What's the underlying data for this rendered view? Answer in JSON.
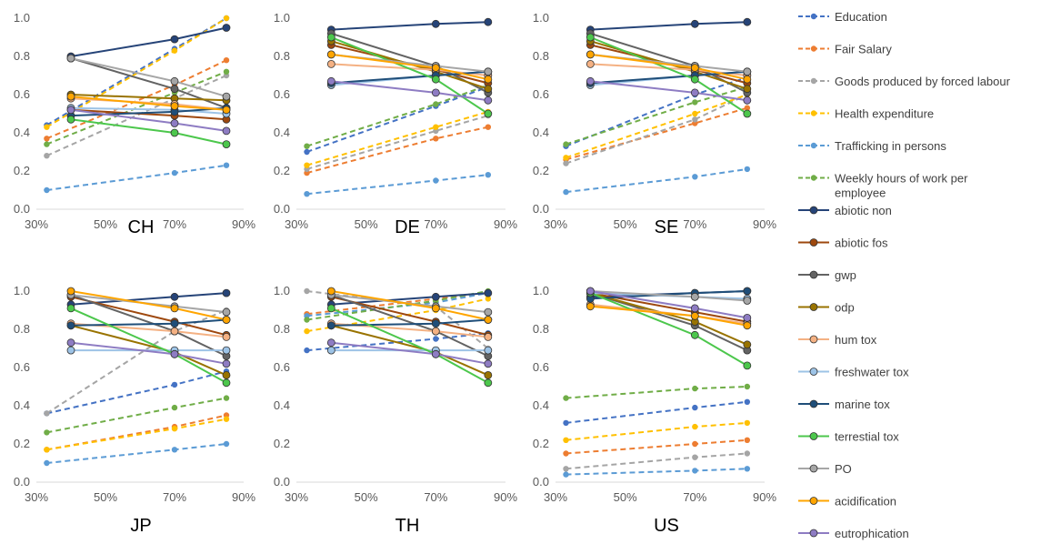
{
  "chart_data": {
    "type": "line",
    "x_tick_labels": [
      "30%",
      "50%",
      "70%",
      "90%"
    ],
    "y_tick_labels": [
      "0.0",
      "0.2",
      "0.4",
      "0.6",
      "0.8",
      "1.0"
    ],
    "xlim": [
      0.3,
      0.9
    ],
    "ylim": [
      0,
      1
    ],
    "grid": false,
    "legend_position": "right",
    "series": [
      {
        "name": "Education",
        "color": "#4472C4",
        "style": "dashed"
      },
      {
        "name": "Fair Salary",
        "color": "#ED7D31",
        "style": "dashed"
      },
      {
        "name": "Goods produced by forced labour",
        "color": "#A5A5A5",
        "style": "dashed"
      },
      {
        "name": "Health expenditure",
        "color": "#FFC000",
        "style": "dashed"
      },
      {
        "name": "Trafficking in persons",
        "color": "#5B9BD5",
        "style": "dashed"
      },
      {
        "name": "Weekly hours of work per employee",
        "color": "#70AD47",
        "style": "dashed"
      },
      {
        "name": "abiotic non",
        "color": "#264478",
        "style": "solid"
      },
      {
        "name": "abiotic fos",
        "color": "#9E480E",
        "style": "solid"
      },
      {
        "name": "gwp",
        "color": "#636363",
        "style": "solid"
      },
      {
        "name": "odp",
        "color": "#997300",
        "style": "solid"
      },
      {
        "name": "hum tox",
        "color": "#F4B183",
        "style": "solid"
      },
      {
        "name": "freshwater tox",
        "color": "#9DC3E6",
        "style": "solid"
      },
      {
        "name": "marine tox",
        "color": "#1F4E79",
        "style": "solid"
      },
      {
        "name": "terrestial tox",
        "color": "#4CC74C",
        "style": "solid"
      },
      {
        "name": "PO",
        "color": "#A6A6A6",
        "style": "solid"
      },
      {
        "name": "acidification",
        "color": "#FFA500",
        "style": "solid"
      },
      {
        "name": "eutrophication",
        "color": "#8E7CC3",
        "style": "solid"
      }
    ],
    "panels": [
      {
        "title": "CH",
        "dashed_x": [
          0.33,
          0.7,
          0.85
        ],
        "solid_x": [
          0.4,
          0.7,
          0.85
        ],
        "values": {
          "Education": [
            0.44,
            0.84,
            1.0
          ],
          "Fair Salary": [
            0.37,
            0.65,
            0.78
          ],
          "Goods produced by forced labour": [
            0.28,
            0.58,
            0.7
          ],
          "Health expenditure": [
            0.43,
            0.83,
            1.0
          ],
          "Trafficking in persons": [
            0.1,
            0.19,
            0.23
          ],
          "Weekly hours of work per employee": [
            0.34,
            0.61,
            0.72
          ],
          "abiotic non": [
            0.8,
            0.89,
            0.95
          ],
          "abiotic fos": [
            0.52,
            0.49,
            0.47
          ],
          "gwp": [
            0.79,
            0.63,
            0.53
          ],
          "odp": [
            0.6,
            0.58,
            0.57
          ],
          "hum tox": [
            0.58,
            0.55,
            0.52
          ],
          "freshwater tox": [
            0.53,
            0.52,
            0.5
          ],
          "marine tox": [
            0.49,
            0.51,
            0.53
          ],
          "terrestial tox": [
            0.47,
            0.4,
            0.34
          ],
          "PO": [
            0.79,
            0.67,
            0.59
          ],
          "acidification": [
            0.59,
            0.54,
            0.52
          ],
          "eutrophication": [
            0.52,
            0.45,
            0.41
          ]
        }
      },
      {
        "title": "DE",
        "dashed_x": [
          0.33,
          0.7,
          0.85
        ],
        "solid_x": [
          0.4,
          0.7,
          0.85
        ],
        "values": {
          "Education": [
            0.3,
            0.54,
            0.64
          ],
          "Fair Salary": [
            0.19,
            0.37,
            0.43
          ],
          "Goods produced by forced labour": [
            0.21,
            0.41,
            0.49
          ],
          "Health expenditure": [
            0.23,
            0.43,
            0.51
          ],
          "Trafficking in persons": [
            0.08,
            0.15,
            0.18
          ],
          "Weekly hours of work per employee": [
            0.33,
            0.55,
            0.65
          ],
          "abiotic non": [
            0.94,
            0.97,
            0.98
          ],
          "abiotic fos": [
            0.86,
            0.73,
            0.66
          ],
          "gwp": [
            0.92,
            0.75,
            0.61
          ],
          "odp": [
            0.88,
            0.72,
            0.63
          ],
          "hum tox": [
            0.76,
            0.73,
            0.7
          ],
          "freshwater tox": [
            0.65,
            0.7,
            0.72
          ],
          "marine tox": [
            0.66,
            0.7,
            0.72
          ],
          "terrestial tox": [
            0.9,
            0.68,
            0.5
          ],
          "PO": [
            0.81,
            0.75,
            0.72
          ],
          "acidification": [
            0.81,
            0.74,
            0.68
          ],
          "eutrophication": [
            0.67,
            0.61,
            0.57
          ]
        }
      },
      {
        "title": "SE",
        "dashed_x": [
          0.33,
          0.7,
          0.85
        ],
        "solid_x": [
          0.4,
          0.7,
          0.85
        ],
        "values": {
          "Education": [
            0.33,
            0.6,
            0.69
          ],
          "Fair Salary": [
            0.26,
            0.45,
            0.53
          ],
          "Goods produced by forced labour": [
            0.24,
            0.47,
            0.6
          ],
          "Health expenditure": [
            0.27,
            0.5,
            0.6
          ],
          "Trafficking in persons": [
            0.09,
            0.17,
            0.21
          ],
          "Weekly hours of work per employee": [
            0.34,
            0.56,
            0.64
          ],
          "abiotic non": [
            0.94,
            0.97,
            0.98
          ],
          "abiotic fos": [
            0.86,
            0.73,
            0.66
          ],
          "gwp": [
            0.92,
            0.75,
            0.61
          ],
          "odp": [
            0.88,
            0.72,
            0.63
          ],
          "hum tox": [
            0.76,
            0.73,
            0.7
          ],
          "freshwater tox": [
            0.65,
            0.7,
            0.72
          ],
          "marine tox": [
            0.66,
            0.7,
            0.72
          ],
          "terrestial tox": [
            0.9,
            0.68,
            0.5
          ],
          "PO": [
            0.81,
            0.75,
            0.72
          ],
          "acidification": [
            0.81,
            0.74,
            0.68
          ],
          "eutrophication": [
            0.67,
            0.61,
            0.57
          ]
        }
      },
      {
        "title": "JP",
        "dashed_x": [
          0.33,
          0.7,
          0.85
        ],
        "solid_x": [
          0.4,
          0.7,
          0.85
        ],
        "values": {
          "Education": [
            0.36,
            0.51,
            0.58
          ],
          "Fair Salary": [
            0.17,
            0.29,
            0.35
          ],
          "Goods produced by forced labour": [
            0.36,
            0.79,
            0.9
          ],
          "Health expenditure": [
            0.17,
            0.28,
            0.33
          ],
          "Trafficking in persons": [
            0.1,
            0.17,
            0.2
          ],
          "Weekly hours of work per employee": [
            0.26,
            0.39,
            0.44
          ],
          "abiotic non": [
            0.93,
            0.97,
            0.99
          ],
          "abiotic fos": [
            0.97,
            0.84,
            0.77
          ],
          "gwp": [
            0.98,
            0.79,
            0.66
          ],
          "odp": [
            0.82,
            0.68,
            0.56
          ],
          "hum tox": [
            0.83,
            0.79,
            0.76
          ],
          "freshwater tox": [
            0.69,
            0.69,
            0.69
          ],
          "marine tox": [
            0.82,
            0.83,
            0.85
          ],
          "terrestial tox": [
            0.91,
            0.67,
            0.52
          ],
          "PO": [
            0.98,
            0.92,
            0.89
          ],
          "acidification": [
            1.0,
            0.91,
            0.85
          ],
          "eutrophication": [
            0.73,
            0.67,
            0.62
          ]
        }
      },
      {
        "title": "TH",
        "dashed_x": [
          0.33,
          0.7,
          0.85
        ],
        "solid_x": [
          0.4,
          0.7,
          0.85
        ],
        "values": {
          "Education": [
            0.69,
            0.75,
            0.78
          ],
          "Fair Salary": [
            0.88,
            0.96,
            0.99
          ],
          "Goods produced by forced labour": [
            1.0,
            0.92,
            0.7
          ],
          "Health expenditure": [
            0.79,
            0.9,
            0.96
          ],
          "Trafficking in persons": [
            0.87,
            0.94,
            0.99
          ],
          "Weekly hours of work per employee": [
            0.85,
            0.95,
            1.0
          ],
          "abiotic non": [
            0.93,
            0.97,
            0.99
          ],
          "abiotic fos": [
            0.97,
            0.84,
            0.77
          ],
          "gwp": [
            0.98,
            0.79,
            0.66
          ],
          "odp": [
            0.82,
            0.68,
            0.56
          ],
          "hum tox": [
            0.83,
            0.79,
            0.76
          ],
          "freshwater tox": [
            0.69,
            0.69,
            0.69
          ],
          "marine tox": [
            0.82,
            0.83,
            0.85
          ],
          "terrestial tox": [
            0.91,
            0.67,
            0.52
          ],
          "PO": [
            0.98,
            0.92,
            0.89
          ],
          "acidification": [
            1.0,
            0.91,
            0.85
          ],
          "eutrophication": [
            0.73,
            0.67,
            0.62
          ]
        }
      },
      {
        "title": "US",
        "dashed_x": [
          0.33,
          0.7,
          0.85
        ],
        "solid_x": [
          0.4,
          0.7,
          0.85
        ],
        "values": {
          "Education": [
            0.31,
            0.39,
            0.42
          ],
          "Fair Salary": [
            0.15,
            0.2,
            0.22
          ],
          "Goods produced by forced labour": [
            0.07,
            0.13,
            0.15
          ],
          "Health expenditure": [
            0.22,
            0.29,
            0.31
          ],
          "Trafficking in persons": [
            0.04,
            0.06,
            0.07
          ],
          "Weekly hours of work per employee": [
            0.44,
            0.49,
            0.5
          ],
          "abiotic non": [
            0.97,
            0.99,
            1.0
          ],
          "abiotic fos": [
            0.99,
            0.89,
            0.84
          ],
          "gwp": [
            0.99,
            0.82,
            0.69
          ],
          "odp": [
            0.99,
            0.84,
            0.72
          ],
          "hum tox": [
            0.93,
            0.87,
            0.83
          ],
          "freshwater tox": [
            0.99,
            0.97,
            0.96
          ],
          "marine tox": [
            0.96,
            0.99,
            1.0
          ],
          "terrestial tox": [
            0.99,
            0.77,
            0.61
          ],
          "PO": [
            1.0,
            0.97,
            0.95
          ],
          "acidification": [
            0.92,
            0.87,
            0.82
          ],
          "eutrophication": [
            1.0,
            0.91,
            0.86
          ]
        }
      }
    ]
  }
}
